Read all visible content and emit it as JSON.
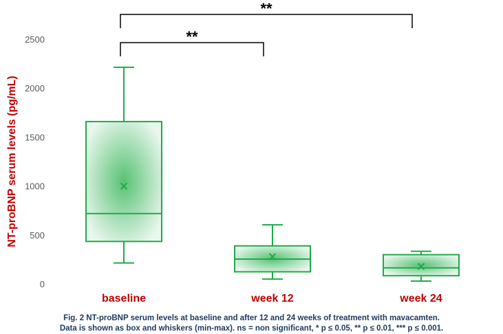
{
  "chart_data": {
    "type": "boxplot",
    "ylabel": "NT-proBNP serum levels (pg/mL)",
    "ylim": [
      0,
      2500
    ],
    "yticks": [
      0,
      500,
      1000,
      1500,
      2000,
      2500
    ],
    "grid": false,
    "categories": [
      "baseline",
      "week 12",
      "week 24"
    ],
    "boxes": [
      {
        "category": "baseline",
        "min": 220,
        "q1": 440,
        "median": 725,
        "q3": 1665,
        "max": 2220,
        "mean": 1005
      },
      {
        "category": "week 12",
        "min": 55,
        "q1": 130,
        "median": 260,
        "q3": 395,
        "max": 610,
        "mean": 285
      },
      {
        "category": "week 24",
        "min": 35,
        "q1": 90,
        "median": 170,
        "q3": 305,
        "max": 340,
        "mean": 185
      }
    ],
    "significance": [
      {
        "from": "baseline",
        "to": "week 12",
        "label": "**"
      },
      {
        "from": "baseline",
        "to": "week 24",
        "label": "**"
      }
    ],
    "colors": {
      "box": "#1faa4a",
      "category_label": "#c00000",
      "ylabel": "#c00000"
    }
  },
  "caption": {
    "line1": "Fig. 2 NT-proBNP serum levels at baseline and after 12 and 24 weeks of treatment with mavacamten.",
    "line2": "Data is shown as box and whiskers (min-max). ns = non significant, * p ≤ 0.05, ** p ≤ 0.01, *** p ≤ 0.001."
  }
}
